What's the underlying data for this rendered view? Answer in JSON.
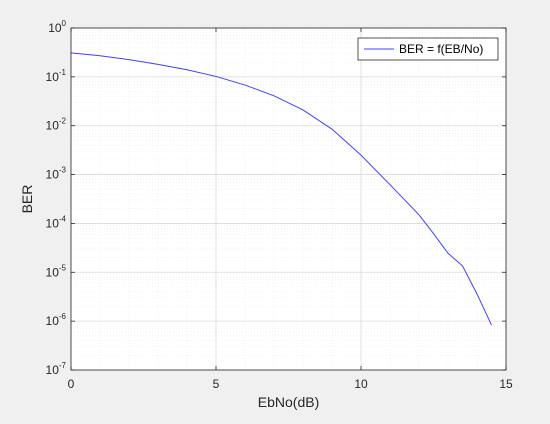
{
  "colors": {
    "figure_background": "#f0f0f0",
    "axes_background": "#ffffff",
    "axis_line": "#262626",
    "grid_major": "#d9d9d9",
    "grid_minor": "#ececec",
    "series": "#4040ff"
  },
  "chart_data": {
    "type": "line",
    "title": "",
    "xlabel": "EbNo(dB)",
    "ylabel": "BER",
    "xlim": [
      0,
      15
    ],
    "ylim": [
      1e-07,
      1
    ],
    "yscale": "log",
    "xticks": [
      0,
      5,
      10,
      15
    ],
    "xtick_labels": [
      "0",
      "5",
      "10",
      "15"
    ],
    "yticks": [
      {
        "base": "10",
        "exp": "-7"
      },
      {
        "base": "10",
        "exp": "-6"
      },
      {
        "base": "10",
        "exp": "-5"
      },
      {
        "base": "10",
        "exp": "-4"
      },
      {
        "base": "10",
        "exp": "-3"
      },
      {
        "base": "10",
        "exp": "-2"
      },
      {
        "base": "10",
        "exp": "-1"
      },
      {
        "base": "10",
        "exp": "0"
      }
    ],
    "grid": true,
    "minor_grid": true,
    "legend_position": "top-right",
    "series": [
      {
        "name": "BER = f(EB/No)",
        "x": [
          0,
          1,
          2,
          3,
          4,
          5,
          6,
          7,
          8,
          9,
          10,
          11,
          12,
          12.5,
          13,
          13.5,
          14,
          14.5
        ],
        "y": [
          0.31,
          0.27,
          0.225,
          0.18,
          0.14,
          0.102,
          0.068,
          0.041,
          0.021,
          0.0085,
          0.0025,
          0.00062,
          0.00015,
          6.2e-05,
          2.45e-05,
          1.35e-05,
          3.6e-06,
          8.3e-07
        ]
      }
    ]
  }
}
